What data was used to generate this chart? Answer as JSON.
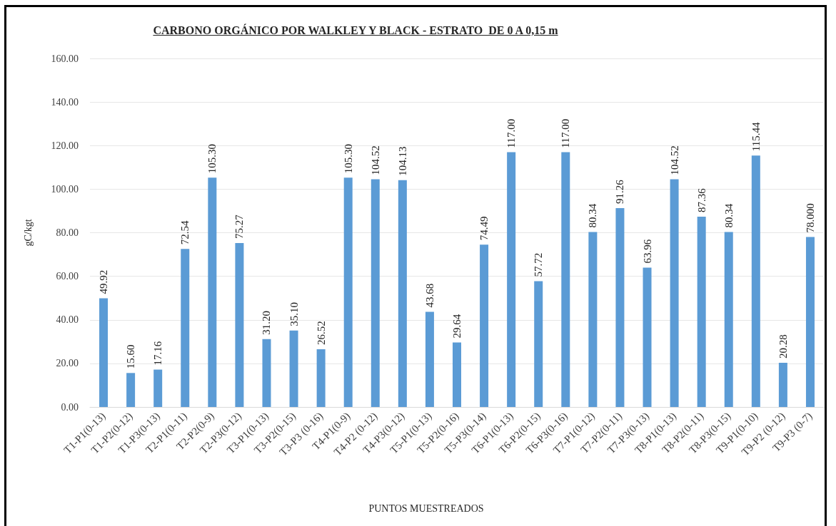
{
  "chart_data": {
    "type": "bar",
    "title": "CARBONO ORGÁNICO POR WALKLEY Y BLACK - ESTRATO  DE 0 A 0,15 m",
    "xlabel": "PUNTOS MUESTREADOS",
    "ylabel": "gC/kgt",
    "categories": [
      "T1-P1(0-13)",
      "T1-P2(0-12)",
      "T1-P3(0-13)",
      "T2-P1(0-11)",
      "T2-P2(0-9)",
      "T2-P3(0-12)",
      "T3-P1(0-13)",
      "T3-P2(0-15)",
      "T3-P3 (0-16)",
      "T4-P1(0-9)",
      "T4-P2 (0-12)",
      "T4-P3(0-12)",
      "T5-P1(0-13)",
      "T5-P2(0-16)",
      "T5-P3(0-14)",
      "T6-P1(0-13)",
      "T6-P2(0-15)",
      "T6-P3(0-16)",
      "T7-P1(0-12)",
      "T7-P2(0-11)",
      "T7-P3(0-13)",
      "T8-P1(0-13)",
      "T8-P2(0-11)",
      "T8-P3(0-15)",
      "T9-P1(0-10)",
      "T9-P2 (0-12)",
      "T9-P3 (0-7)"
    ],
    "values": [
      49.92,
      15.6,
      17.16,
      72.54,
      105.3,
      75.27,
      31.2,
      35.1,
      26.52,
      105.3,
      104.52,
      104.13,
      43.68,
      29.64,
      74.49,
      117.0,
      57.72,
      117.0,
      80.34,
      91.26,
      63.96,
      104.52,
      87.36,
      80.34,
      115.44,
      20.28,
      78.0
    ],
    "value_labels": [
      "49.92",
      "15.60",
      "17.16",
      "72.54",
      "105.30",
      "75.27",
      "31.20",
      "35.10",
      "26.52",
      "105.30",
      "104.52",
      "104.13",
      "43.68",
      "29.64",
      "74.49",
      "117.00",
      "57.72",
      "117.00",
      "80.34",
      "91.26",
      "63.96",
      "104.52",
      "87.36",
      "80.34",
      "115.44",
      "20.28",
      "78.000"
    ],
    "color": "#5b9bd5",
    "ylim": [
      0,
      160
    ],
    "yticks": [
      {
        "value": 0,
        "label": "0.00"
      },
      {
        "value": 20,
        "label": "20.00"
      },
      {
        "value": 40,
        "label": "40.00"
      },
      {
        "value": 60,
        "label": "60.00"
      },
      {
        "value": 80,
        "label": "80.00"
      },
      {
        "value": 100,
        "label": "100.00"
      },
      {
        "value": 120,
        "label": "120.00"
      },
      {
        "value": 140,
        "label": "140.00"
      },
      {
        "value": 160,
        "label": "160.00"
      }
    ],
    "grid": "y"
  }
}
